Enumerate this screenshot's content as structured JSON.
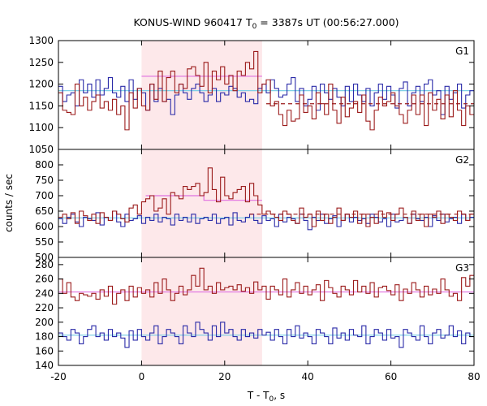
{
  "chart_data": {
    "type": "line",
    "title_main": "KONUS-WIND 960417 T",
    "title_sub": "0",
    "title_rest": " = 3387s UT (00:56:27.000)",
    "xlabel_main": "T - T",
    "xlabel_sub": "0",
    "xlabel_rest": ", s",
    "ylabel": "counts / sec",
    "xlim": [
      -20,
      80
    ],
    "x_ticks": [
      -20,
      0,
      20,
      40,
      60,
      80
    ],
    "highlight_interval": [
      0,
      29
    ],
    "grid": false,
    "legend": "none",
    "colors": {
      "red": "#9b1b1b",
      "blue": "#2a2aa8",
      "cyan": "#7fcfe6",
      "magenta": "#e070e0",
      "highlight": "#fde8ea"
    },
    "panels": [
      {
        "label": "G1",
        "ylim": [
          1050,
          1300
        ],
        "y_ticks": [
          1050,
          1100,
          1150,
          1200,
          1250,
          1300
        ],
        "series": [
          {
            "color": "red",
            "step": 1.0,
            "x0": -20,
            "values": [
              1180,
              1140,
              1135,
              1130,
              1200,
              1150,
              1170,
              1140,
              1160,
              1175,
              1145,
              1160,
              1140,
              1165,
              1130,
              1150,
              1095,
              1180,
              1145,
              1190,
              1150,
              1140,
              1200,
              1165,
              1230,
              1160,
              1215,
              1230,
              1180,
              1200,
              1190,
              1235,
              1240,
              1220,
              1195,
              1250,
              1180,
              1230,
              1210,
              1240,
              1200,
              1220,
              1185,
              1230,
              1220,
              1250,
              1235,
              1275,
              1180,
              1200,
              1210,
              1150,
              1160,
              1130,
              1105,
              1140,
              1115,
              1120,
              1175,
              1135,
              1150,
              1120,
              1180,
              1155,
              1130,
              1200,
              1140,
              1110,
              1170,
              1125,
              1145,
              1160,
              1135,
              1175,
              1115,
              1095,
              1140,
              1170,
              1150,
              1160,
              1180,
              1150,
              1130,
              1110,
              1140,
              1175,
              1130,
              1175,
              1105,
              1180,
              1140,
              1165,
              1120,
              1175,
              1125,
              1185,
              1140,
              1105,
              1150,
              1130
            ]
          },
          {
            "color": "blue",
            "step": 1.0,
            "x0": -20,
            "values": [
              1195,
              1160,
              1175,
              1180,
              1150,
              1210,
              1180,
              1200,
              1170,
              1210,
              1175,
              1190,
              1215,
              1180,
              1170,
              1195,
              1160,
              1210,
              1165,
              1190,
              1180,
              1140,
              1200,
              1160,
              1190,
              1160,
              1165,
              1130,
              1175,
              1200,
              1180,
              1165,
              1190,
              1200,
              1180,
              1160,
              1175,
              1190,
              1160,
              1180,
              1175,
              1195,
              1190,
              1170,
              1180,
              1160,
              1165,
              1155,
              1190,
              1200,
              1180,
              1210,
              1190,
              1170,
              1175,
              1200,
              1215,
              1160,
              1190,
              1150,
              1165,
              1195,
              1140,
              1200,
              1180,
              1165,
              1190,
              1170,
              1150,
              1195,
              1160,
              1200,
              1175,
              1160,
              1190,
              1150,
              1180,
              1200,
              1165,
              1195,
              1175,
              1145,
              1190,
              1205,
              1150,
              1180,
              1195,
              1160,
              1200,
              1210,
              1175,
              1185,
              1130,
              1195,
              1165,
              1180,
              1200,
              1145,
              1175,
              1185
            ]
          },
          {
            "color": "cyan",
            "step": 100.0,
            "x0": -20,
            "values": [
              1185
            ]
          },
          {
            "color": "magenta",
            "step": 29.0,
            "x0": 0,
            "values": [
              1218
            ]
          }
        ],
        "hline": {
          "color": "red",
          "value": 1155,
          "x_from": 30,
          "x_to": 80,
          "dashed": true
        }
      },
      {
        "label": "G2",
        "ylim": [
          500,
          850
        ],
        "y_ticks": [
          500,
          550,
          600,
          650,
          700,
          750,
          800
        ],
        "series": [
          {
            "color": "red",
            "step": 1.0,
            "x0": -20,
            "values": [
              630,
              640,
              625,
              645,
              610,
              650,
              635,
              620,
              640,
              610,
              645,
              630,
              620,
              650,
              640,
              625,
              615,
              660,
              670,
              640,
              680,
              690,
              700,
              650,
              660,
              690,
              640,
              710,
              700,
              690,
              730,
              720,
              730,
              740,
              700,
              710,
              790,
              720,
              680,
              760,
              700,
              690,
              710,
              720,
              730,
              680,
              740,
              700,
              670,
              640,
              650,
              640,
              630,
              620,
              650,
              640,
              620,
              610,
              660,
              630,
              640,
              600,
              650,
              620,
              640,
              610,
              630,
              660,
              620,
              640,
              630,
              650,
              610,
              640,
              600,
              630,
              610,
              650,
              630,
              645,
              620,
              640,
              660,
              630,
              610,
              650,
              620,
              640,
              600,
              640,
              630,
              650,
              610,
              640,
              630,
              620,
              650,
              640,
              620,
              640
            ]
          },
          {
            "color": "blue",
            "step": 1.0,
            "x0": -20,
            "values": [
              625,
              610,
              630,
              640,
              615,
              600,
              630,
              625,
              620,
              645,
              605,
              630,
              620,
              650,
              615,
              600,
              640,
              620,
              625,
              635,
              610,
              630,
              620,
              640,
              615,
              630,
              625,
              605,
              640,
              620,
              630,
              615,
              640,
              610,
              625,
              630,
              620,
              640,
              610,
              625,
              630,
              605,
              645,
              620,
              615,
              630,
              640,
              620,
              610,
              635,
              620,
              625,
              600,
              640,
              615,
              630,
              625,
              610,
              640,
              620,
              590,
              630,
              620,
              640,
              610,
              625,
              635,
              600,
              620,
              640,
              615,
              630,
              620,
              625,
              610,
              640,
              630,
              615,
              625,
              600,
              640,
              615,
              620,
              630,
              610,
              640,
              625,
              620,
              630,
              600,
              635,
              620,
              640,
              615,
              625,
              630,
              610,
              640,
              620,
              630
            ]
          },
          {
            "color": "cyan",
            "step": 100.0,
            "x0": -20,
            "values": [
              628
            ]
          },
          {
            "color": "magenta",
            "step": 14.0,
            "x0": 1,
            "values": [
              700,
              685
            ]
          }
        ],
        "hline": {
          "color": "red",
          "value": 640,
          "x_from": 26,
          "x_to": 80,
          "dashed": true
        }
      },
      {
        "label": "G3",
        "ylim": [
          140,
          290
        ],
        "y_ticks": [
          140,
          160,
          180,
          200,
          220,
          240,
          260,
          280
        ],
        "series": [
          {
            "color": "red",
            "step": 1.0,
            "x0": -20,
            "values": [
              260,
              240,
              255,
              235,
              230,
              240,
              238,
              236,
              240,
              232,
              245,
              236,
              250,
              225,
              240,
              245,
              230,
              250,
              235,
              248,
              240,
              245,
              235,
              255,
              240,
              260,
              245,
              230,
              240,
              250,
              238,
              245,
              265,
              250,
              275,
              245,
              250,
              240,
              255,
              245,
              248,
              250,
              245,
              252,
              243,
              248,
              240,
              256,
              245,
              250,
              232,
              250,
              245,
              238,
              260,
              235,
              245,
              255,
              240,
              250,
              238,
              245,
              252,
              230,
              258,
              248,
              240,
              235,
              250,
              245,
              238,
              258,
              242,
              250,
              240,
              255,
              235,
              248,
              250,
              244,
              238,
              252,
              230,
              246,
              240,
              255,
              245,
              235,
              250,
              238,
              246,
              240,
              260,
              245,
              236,
              240,
              230,
              262,
              250,
              265
            ]
          },
          {
            "color": "blue",
            "step": 1.0,
            "x0": -20,
            "values": [
              185,
              180,
              175,
              190,
              185,
              170,
              180,
              190,
              195,
              180,
              185,
              175,
              190,
              180,
              185,
              178,
              165,
              188,
              175,
              190,
              180,
              175,
              185,
              195,
              170,
              180,
              190,
              185,
              180,
              170,
              195,
              185,
              180,
              200,
              190,
              185,
              175,
              195,
              180,
              200,
              185,
              190,
              180,
              175,
              190,
              180,
              185,
              178,
              190,
              182,
              186,
              175,
              190,
              180,
              170,
              190,
              180,
              195,
              178,
              185,
              180,
              170,
              190,
              185,
              180,
              170,
              192,
              178,
              185,
              175,
              190,
              182,
              180,
              195,
              170,
              180,
              190,
              185,
              175,
              190,
              178,
              180,
              165,
              190,
              185,
              180,
              175,
              195,
              180,
              170,
              185,
              190,
              178,
              182,
              195,
              180,
              188,
              170,
              185,
              180
            ]
          },
          {
            "color": "cyan",
            "step": 100.0,
            "x0": -20,
            "values": [
              182
            ]
          },
          {
            "color": "magenta",
            "step": 100.0,
            "x0": -20,
            "values": [
              242
            ]
          }
        ],
        "hline": null
      }
    ]
  }
}
